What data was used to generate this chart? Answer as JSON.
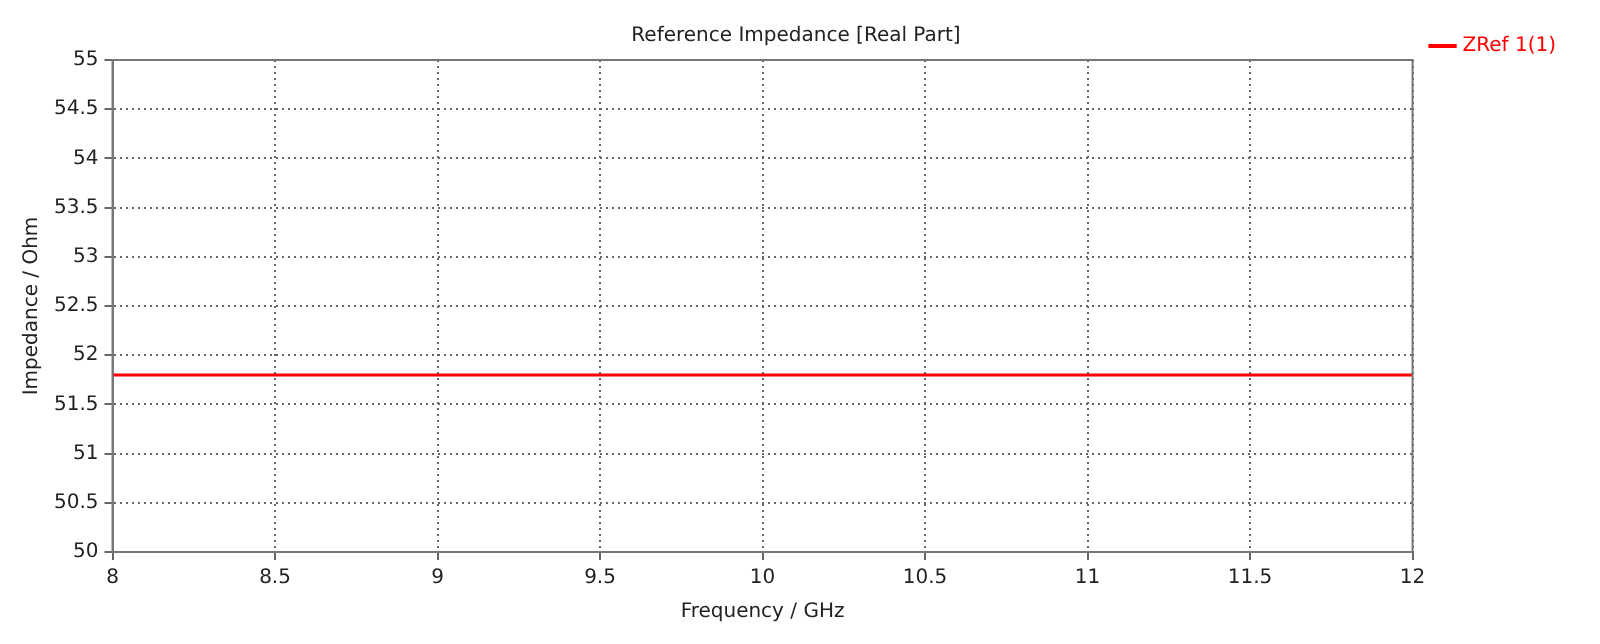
{
  "chart_data": {
    "type": "line",
    "title": "Reference Impedance [Real Part]",
    "xlabel": "Frequency / GHz",
    "ylabel": "Impedance / Ohm",
    "x": [
      8,
      12
    ],
    "series": [
      {
        "name": "ZRef 1(1)",
        "color": "#ff0000",
        "values": [
          51.8,
          51.8
        ]
      }
    ],
    "xlim": [
      8,
      12
    ],
    "xticks": [
      8,
      8.5,
      9,
      9.5,
      10,
      10.5,
      11,
      11.5,
      12
    ],
    "ylim": [
      50,
      55
    ],
    "yticks": [
      50,
      50.5,
      51,
      51.5,
      52,
      52.5,
      53,
      53.5,
      54,
      54.5,
      55
    ],
    "grid": true,
    "legend": "top right",
    "marker": "none",
    "line_style": "solid"
  }
}
